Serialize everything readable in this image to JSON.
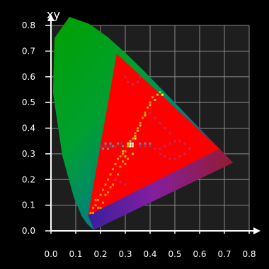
{
  "chart_data": {
    "type": "scatter",
    "title": "xy",
    "xlabel": "",
    "ylabel": "",
    "xlim": [
      0.0,
      0.8
    ],
    "ylim": [
      0.0,
      0.8
    ],
    "x_ticks": [
      "0.0",
      "0.1",
      "0.2",
      "0.3",
      "0.4",
      "0.5",
      "0.6",
      "0.7",
      "0.8"
    ],
    "y_ticks": [
      "0.0",
      "0.1",
      "0.2",
      "0.3",
      "0.4",
      "0.5",
      "0.6",
      "0.7",
      "0.8"
    ],
    "grid": true,
    "legend": "none",
    "background_color": "#1e1e1e",
    "grid_color": "#8a8a8a",
    "axis_color": "#ffffff",
    "spectral_locus": [
      [
        0.1741,
        0.005
      ],
      [
        0.1738,
        0.0049
      ],
      [
        0.1736,
        0.0049
      ],
      [
        0.1733,
        0.0048
      ],
      [
        0.1726,
        0.0048
      ],
      [
        0.1714,
        0.0051
      ],
      [
        0.1689,
        0.0069
      ],
      [
        0.1644,
        0.0109
      ],
      [
        0.1566,
        0.0177
      ],
      [
        0.144,
        0.0297
      ],
      [
        0.1241,
        0.0578
      ],
      [
        0.0913,
        0.1327
      ],
      [
        0.0454,
        0.295
      ],
      [
        0.0082,
        0.5384
      ],
      [
        0.0139,
        0.7502
      ],
      [
        0.0743,
        0.8338
      ],
      [
        0.1547,
        0.8059
      ],
      [
        0.2296,
        0.7543
      ],
      [
        0.3016,
        0.6923
      ],
      [
        0.3731,
        0.6245
      ],
      [
        0.4441,
        0.5547
      ],
      [
        0.5125,
        0.4866
      ],
      [
        0.5752,
        0.4242
      ],
      [
        0.627,
        0.3725
      ],
      [
        0.6658,
        0.334
      ],
      [
        0.6915,
        0.3083
      ],
      [
        0.7079,
        0.292
      ],
      [
        0.719,
        0.2809
      ],
      [
        0.726,
        0.274
      ],
      [
        0.7347,
        0.2653
      ]
    ],
    "gamut_triangle": [
      [
        0.68,
        0.32
      ],
      [
        0.265,
        0.69
      ],
      [
        0.15,
        0.06
      ]
    ],
    "gamut_color": "#ff0000",
    "series": [
      {
        "color": "#ff8c00",
        "points": [
          [
            0.16,
            0.07
          ],
          [
            0.17,
            0.09
          ],
          [
            0.18,
            0.1
          ],
          [
            0.19,
            0.12
          ],
          [
            0.2,
            0.14
          ],
          [
            0.21,
            0.16
          ],
          [
            0.22,
            0.18
          ],
          [
            0.23,
            0.2
          ],
          [
            0.24,
            0.22
          ],
          [
            0.25,
            0.24
          ],
          [
            0.26,
            0.26
          ],
          [
            0.27,
            0.28
          ],
          [
            0.28,
            0.29
          ],
          [
            0.29,
            0.3
          ],
          [
            0.3,
            0.31
          ],
          [
            0.17,
            0.07
          ],
          [
            0.19,
            0.09
          ],
          [
            0.21,
            0.11
          ],
          [
            0.22,
            0.14
          ],
          [
            0.18,
            0.12
          ],
          [
            0.2,
            0.09
          ],
          [
            0.23,
            0.15
          ],
          [
            0.24,
            0.17
          ],
          [
            0.26,
            0.2
          ],
          [
            0.25,
            0.18
          ],
          [
            0.27,
            0.22
          ],
          [
            0.28,
            0.25
          ],
          [
            0.29,
            0.27
          ],
          [
            0.31,
            0.28
          ],
          [
            0.3,
            0.26
          ],
          [
            0.32,
            0.34
          ],
          [
            0.33,
            0.36
          ],
          [
            0.34,
            0.38
          ],
          [
            0.35,
            0.4
          ],
          [
            0.36,
            0.42
          ],
          [
            0.37,
            0.44
          ],
          [
            0.38,
            0.46
          ],
          [
            0.39,
            0.48
          ],
          [
            0.4,
            0.5
          ],
          [
            0.41,
            0.52
          ]
        ]
      },
      {
        "color": "#9acd32",
        "points": [
          [
            0.31,
            0.33
          ],
          [
            0.32,
            0.35
          ],
          [
            0.34,
            0.37
          ],
          [
            0.36,
            0.41
          ],
          [
            0.38,
            0.45
          ],
          [
            0.4,
            0.49
          ],
          [
            0.42,
            0.51
          ],
          [
            0.43,
            0.53
          ],
          [
            0.44,
            0.54
          ],
          [
            0.33,
            0.3
          ],
          [
            0.3,
            0.29
          ],
          [
            0.29,
            0.31
          ],
          [
            0.35,
            0.39
          ]
        ]
      },
      {
        "color": "#b03060",
        "points": [
          [
            0.2,
            0.33
          ],
          [
            0.22,
            0.33
          ],
          [
            0.24,
            0.33
          ],
          [
            0.26,
            0.33
          ],
          [
            0.28,
            0.34
          ],
          [
            0.36,
            0.33
          ],
          [
            0.38,
            0.33
          ],
          [
            0.4,
            0.33
          ],
          [
            0.42,
            0.32
          ],
          [
            0.44,
            0.32
          ],
          [
            0.46,
            0.33
          ],
          [
            0.48,
            0.34
          ],
          [
            0.5,
            0.35
          ],
          [
            0.52,
            0.35
          ],
          [
            0.54,
            0.34
          ],
          [
            0.56,
            0.32
          ],
          [
            0.44,
            0.3
          ],
          [
            0.46,
            0.29
          ],
          [
            0.48,
            0.28
          ],
          [
            0.5,
            0.28
          ],
          [
            0.52,
            0.29
          ],
          [
            0.54,
            0.3
          ],
          [
            0.3,
            0.6
          ],
          [
            0.31,
            0.58
          ],
          [
            0.33,
            0.57
          ],
          [
            0.35,
            0.58
          ],
          [
            0.36,
            0.6
          ],
          [
            0.26,
            0.2
          ],
          [
            0.28,
            0.19
          ],
          [
            0.3,
            0.18
          ],
          [
            0.4,
            0.46
          ],
          [
            0.42,
            0.44
          ],
          [
            0.44,
            0.42
          ],
          [
            0.46,
            0.4
          ],
          [
            0.48,
            0.38
          ]
        ]
      },
      {
        "color": "#5f8fa0",
        "points": [
          [
            0.21,
            0.32
          ],
          [
            0.23,
            0.32
          ],
          [
            0.25,
            0.33
          ],
          [
            0.27,
            0.34
          ],
          [
            0.29,
            0.33
          ],
          [
            0.36,
            0.34
          ],
          [
            0.38,
            0.34
          ],
          [
            0.4,
            0.34
          ],
          [
            0.22,
            0.34
          ],
          [
            0.24,
            0.34
          ]
        ]
      },
      {
        "color": "#ffff00",
        "points": [
          [
            0.31,
            0.34
          ],
          [
            0.33,
            0.33
          ],
          [
            0.34,
            0.36
          ],
          [
            0.45,
            0.53
          ]
        ]
      },
      {
        "color": "#ffffff",
        "points": [
          [
            0.32,
            0.33
          ],
          [
            0.33,
            0.34
          ],
          [
            0.32,
            0.34
          ]
        ]
      }
    ]
  }
}
